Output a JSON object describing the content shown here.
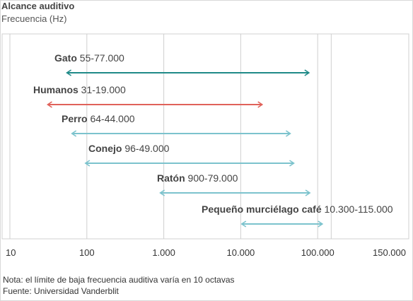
{
  "header": {
    "title": "Alcance auditivo",
    "subtitle": "Frecuencia (Hz)"
  },
  "footer": {
    "note": "Nota: el límite de baja frecuencia auditiva varía en 10 octavas",
    "source": "Fuente: Universidad Vanderblit"
  },
  "chart_data": {
    "type": "range",
    "title": "Alcance auditivo",
    "xlabel": "Frecuencia (Hz)",
    "x_scale": "log",
    "xlim": [
      10,
      150000
    ],
    "x_ticks": [
      {
        "value": 10,
        "label": "10"
      },
      {
        "value": 100,
        "label": "100"
      },
      {
        "value": 1000,
        "label": "1.000"
      },
      {
        "value": 10000,
        "label": "10.000"
      },
      {
        "value": 100000,
        "label": "100.000"
      },
      {
        "value": 150000,
        "label": "150.000"
      }
    ],
    "grid": true,
    "series": [
      {
        "name": "Gato",
        "range_label": "55-77.000",
        "low": 55,
        "high": 77000,
        "color": "#1f8a88"
      },
      {
        "name": "Humanos",
        "range_label": "31-19.000",
        "low": 31,
        "high": 19000,
        "color": "#e0625a"
      },
      {
        "name": "Perro",
        "range_label": "64-44.000",
        "low": 64,
        "high": 44000,
        "color": "#7cc3cd"
      },
      {
        "name": "Conejo",
        "range_label": "96-49.000",
        "low": 96,
        "high": 49000,
        "color": "#7cc3cd"
      },
      {
        "name": "Ratón",
        "range_label": "900-79.000",
        "low": 900,
        "high": 79000,
        "color": "#7cc3cd"
      },
      {
        "name": "Pequeño murciélago café",
        "range_label": "10.300-115.000",
        "low": 10300,
        "high": 115000,
        "color": "#7cc3cd"
      }
    ]
  }
}
